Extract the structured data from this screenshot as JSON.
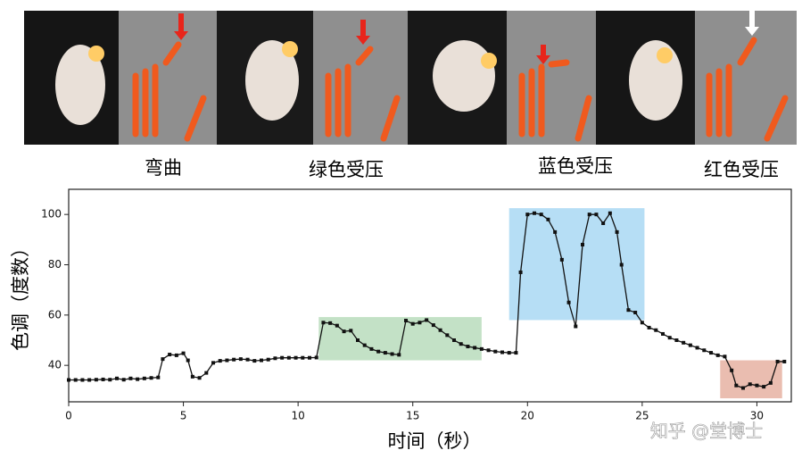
{
  "panel_labels": [
    "弯曲",
    "绿色受压",
    "蓝色受压",
    "红色受压"
  ],
  "watermark": "知乎 @堂博士",
  "chart_data": {
    "type": "line",
    "xlabel": "时间（秒）",
    "ylabel": "色调（度数）",
    "color": "#111111",
    "x": [
      0,
      0.3,
      0.6,
      0.9,
      1.2,
      1.5,
      1.8,
      2.1,
      2.4,
      2.7,
      3.0,
      3.3,
      3.6,
      3.9,
      4.1,
      4.4,
      4.7,
      5.0,
      5.2,
      5.4,
      5.7,
      6.0,
      6.3,
      6.6,
      6.9,
      7.2,
      7.5,
      7.8,
      8.1,
      8.4,
      8.7,
      9.0,
      9.3,
      9.6,
      9.9,
      10.2,
      10.5,
      10.8,
      11.1,
      11.4,
      11.7,
      12.0,
      12.3,
      12.6,
      12.9,
      13.2,
      13.5,
      13.8,
      14.1,
      14.4,
      14.7,
      15.0,
      15.3,
      15.6,
      15.9,
      16.2,
      16.5,
      16.8,
      17.1,
      17.4,
      17.7,
      18.0,
      18.3,
      18.6,
      18.9,
      19.2,
      19.5,
      19.7,
      20.0,
      20.3,
      20.6,
      20.9,
      21.2,
      21.5,
      21.8,
      22.1,
      22.4,
      22.7,
      23.0,
      23.3,
      23.6,
      23.9,
      24.1,
      24.4,
      24.7,
      25.0,
      25.3,
      25.6,
      25.9,
      26.2,
      26.5,
      26.8,
      27.1,
      27.4,
      27.7,
      28.0,
      28.3,
      28.6,
      28.9,
      29.1,
      29.4,
      29.7,
      30.0,
      30.3,
      30.6,
      30.9,
      31.2
    ],
    "values": [
      34.2,
      34.2,
      34.2,
      34.2,
      34.3,
      34.4,
      34.3,
      34.8,
      34.3,
      34.8,
      34.5,
      34.8,
      35,
      35.2,
      42.5,
      44.3,
      44,
      44.8,
      42,
      35.5,
      35,
      37,
      41,
      41.8,
      42,
      42.3,
      42.5,
      42.3,
      41.8,
      42,
      42.3,
      42.8,
      43,
      43,
      43,
      43,
      43,
      43.1,
      57,
      56.8,
      55.8,
      53.5,
      53.8,
      50,
      48,
      46.5,
      45.5,
      45,
      44.5,
      44.2,
      57.8,
      56.5,
      57,
      58,
      56,
      54,
      52,
      50,
      48.5,
      47.5,
      47,
      46.5,
      46,
      45.5,
      45.2,
      45,
      45,
      77,
      100,
      100.5,
      100,
      98,
      93,
      82,
      65,
      55.5,
      88,
      100,
      100,
      96.5,
      100.5,
      93,
      80,
      62,
      61,
      57,
      55,
      54,
      52.5,
      51,
      50,
      49,
      48,
      47,
      46,
      45,
      44,
      43.5,
      38,
      32,
      31,
      32.5,
      32,
      31.5,
      33,
      41.5,
      41.5
    ],
    "regions": [
      {
        "x": [
          10.9,
          18.0
        ],
        "y": [
          42,
          59.2
        ],
        "color": "#b9dcbc"
      },
      {
        "x": [
          19.2,
          25.1
        ],
        "y": [
          58,
          102.5
        ],
        "color": "#a9d8f3"
      },
      {
        "x": [
          28.4,
          31.1
        ],
        "y": [
          26.9,
          42
        ],
        "color": "#e6b1a2"
      }
    ],
    "xlim": [
      0,
      31.5
    ],
    "ylim": [
      25.5,
      110
    ],
    "xticks": [
      0,
      5,
      10,
      15,
      20,
      25,
      30
    ],
    "yticks": [
      40,
      60,
      80,
      100
    ]
  }
}
